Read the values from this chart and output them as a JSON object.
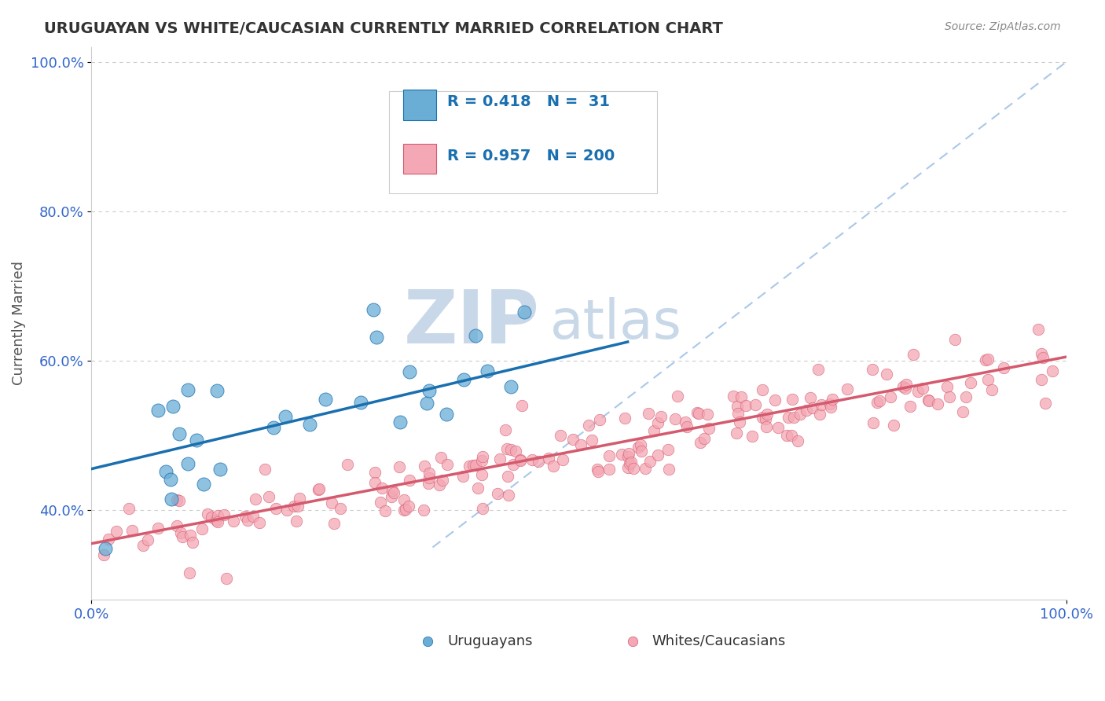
{
  "title": "URUGUAYAN VS WHITE/CAUCASIAN CURRENTLY MARRIED CORRELATION CHART",
  "source_text": "Source: ZipAtlas.com",
  "ylabel": "Currently Married",
  "y_tick_labels": [
    "40.0%",
    "60.0%",
    "80.0%",
    "100.0%"
  ],
  "y_ticks": [
    0.4,
    0.6,
    0.8,
    1.0
  ],
  "xlim": [
    0.0,
    1.0
  ],
  "ylim": [
    0.28,
    1.02
  ],
  "blue_R": "0.418",
  "blue_N": "31",
  "pink_R": "0.957",
  "pink_N": "200",
  "blue_color": "#6aaed6",
  "pink_color": "#f4a7b4",
  "blue_line_color": "#1a6faf",
  "pink_line_color": "#d45a6e",
  "diag_line_color": "#aac8e8",
  "watermark_color": "#c8d8e8",
  "legend_R_color": "#1a6faf",
  "blue_line_x": [
    0.0,
    0.55
  ],
  "blue_line_y": [
    0.455,
    0.625
  ],
  "pink_line_x": [
    0.0,
    1.0
  ],
  "pink_line_y": [
    0.355,
    0.605
  ],
  "diag_line_x": [
    0.35,
    1.0
  ],
  "diag_line_y": [
    0.35,
    1.0
  ]
}
